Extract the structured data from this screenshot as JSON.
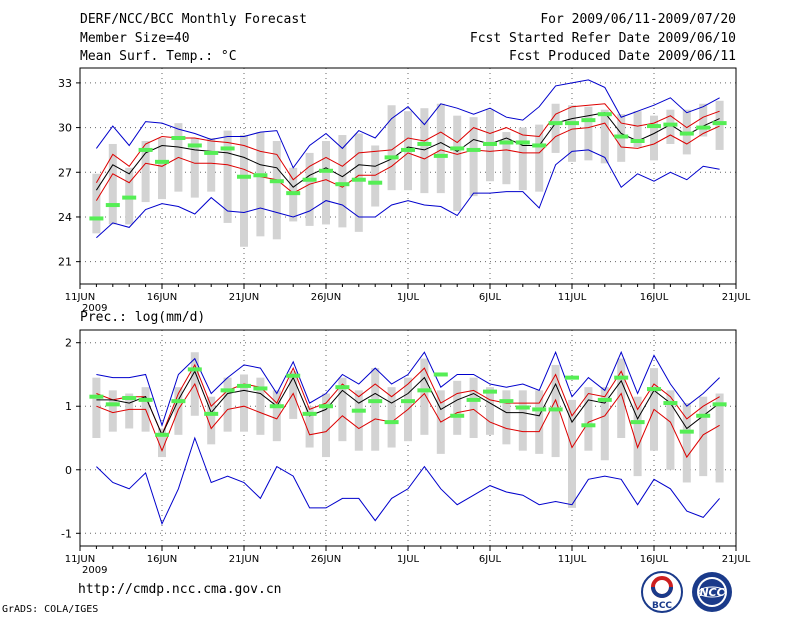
{
  "header": {
    "title": "DERF/NCC/BCC Monthly Forecast",
    "member_size": "Member Size=40",
    "variable": "Mean Surf. Temp.: °C",
    "period": "For 2009/06/11-2009/07/20",
    "fcst_started": "Fcst Started Refer Date 2009/06/10",
    "fcst_produced": "Fcst Produced Date 2009/06/11"
  },
  "footer": {
    "url": "http://cmdp.ncc.cma.gov.cn",
    "grads": "GrADS: COLA/IGES",
    "logo_left_text": "BCC",
    "logo_right_text": "NCC"
  },
  "colors": {
    "ensemble_range": "#0000cc",
    "spread_band": "#dd0000",
    "ensemble_mean": "#000000",
    "iqr_bar": "#d3d3d3",
    "median_marker": "#55ee55",
    "grid": "#666666"
  },
  "chart_data": [
    {
      "type": "line",
      "title": "Mean Surf. Temp.: °C",
      "ylabel": "°C",
      "ylim": [
        19.5,
        34
      ],
      "yticks": [
        21,
        24,
        27,
        30,
        33
      ],
      "ytick_labels": [
        "21",
        "24",
        "27",
        "30",
        "33"
      ],
      "xlim": [
        0,
        40
      ],
      "xticks": [
        0,
        5,
        10,
        15,
        20,
        25,
        30,
        35,
        40
      ],
      "xtick_labels": [
        "11JUN",
        "16JUN",
        "21JUN",
        "26JUN",
        "1JUL",
        "6JUL",
        "11JUL",
        "16JUL",
        "21JUL"
      ],
      "year_label": "2009",
      "grid": true,
      "x": [
        1,
        2,
        3,
        4,
        5,
        6,
        7,
        8,
        9,
        10,
        11,
        12,
        13,
        14,
        15,
        16,
        17,
        18,
        19,
        20,
        21,
        22,
        23,
        24,
        25,
        26,
        27,
        28,
        29,
        30,
        31,
        32,
        33,
        34,
        35,
        36,
        37,
        38,
        39
      ],
      "series": [
        {
          "name": "max",
          "values": [
            28.6,
            30.1,
            28.8,
            30.4,
            30.3,
            29.9,
            29.6,
            29.2,
            29.4,
            29.4,
            29.7,
            29.8,
            27.3,
            28.8,
            29.6,
            28.6,
            29.8,
            29.3,
            30.6,
            31.4,
            30.2,
            31.6,
            31.3,
            30.9,
            31.3,
            30.7,
            30.5,
            31.4,
            32.8,
            33.0,
            33.2,
            32.7,
            30.7,
            31.1,
            31.5,
            32.0,
            31.0,
            31.4,
            32.0
          ]
        },
        {
          "name": "upper",
          "values": [
            26.3,
            28.2,
            27.4,
            28.9,
            29.4,
            29.3,
            29.3,
            29.1,
            29.0,
            28.8,
            28.4,
            28.2,
            26.5,
            27.4,
            28.0,
            27.4,
            28.3,
            28.4,
            28.5,
            29.3,
            29.1,
            29.7,
            29.0,
            30.0,
            29.6,
            30.0,
            29.5,
            29.4,
            30.9,
            31.4,
            31.5,
            31.6,
            30.3,
            30.1,
            30.3,
            30.8,
            30.0,
            30.7,
            31.1
          ]
        },
        {
          "name": "mean",
          "values": [
            25.8,
            27.5,
            26.9,
            28.3,
            28.8,
            28.7,
            28.5,
            28.4,
            28.3,
            28.0,
            27.5,
            27.3,
            26.0,
            26.8,
            27.3,
            26.7,
            27.5,
            27.4,
            27.9,
            28.7,
            28.5,
            29.0,
            28.4,
            29.2,
            28.9,
            29.3,
            28.8,
            28.8,
            30.3,
            30.6,
            30.8,
            31.0,
            29.6,
            29.1,
            29.6,
            30.2,
            29.5,
            30.1,
            30.6
          ]
        },
        {
          "name": "lower",
          "values": [
            25.1,
            26.9,
            26.3,
            27.6,
            27.4,
            28.0,
            27.6,
            27.6,
            27.5,
            27.2,
            26.7,
            26.5,
            25.6,
            26.2,
            26.5,
            26.0,
            26.8,
            26.8,
            27.4,
            28.3,
            27.9,
            28.5,
            28.2,
            28.5,
            28.4,
            28.5,
            28.3,
            28.3,
            29.4,
            29.9,
            30.0,
            30.3,
            28.7,
            28.6,
            28.9,
            29.5,
            28.9,
            29.6,
            30.1
          ]
        },
        {
          "name": "min",
          "values": [
            22.6,
            23.6,
            23.3,
            24.5,
            24.9,
            24.7,
            24.2,
            25.3,
            24.4,
            24.3,
            24.6,
            24.3,
            24.0,
            24.4,
            25.1,
            24.8,
            24.0,
            24.0,
            24.8,
            25.1,
            24.8,
            24.7,
            24.1,
            25.6,
            25.6,
            25.7,
            25.7,
            24.6,
            27.5,
            28.4,
            28.5,
            28.0,
            26.0,
            26.9,
            26.4,
            27.0,
            26.5,
            27.4,
            27.2
          ]
        }
      ],
      "boxes": {
        "low": [
          22.9,
          23.5,
          23.5,
          25.0,
          25.2,
          25.7,
          25.3,
          25.7,
          23.6,
          22.0,
          22.7,
          22.5,
          23.7,
          23.4,
          23.5,
          23.3,
          23.0,
          24.7,
          25.8,
          25.8,
          25.6,
          25.6,
          24.4,
          25.4,
          26.4,
          26.2,
          25.8,
          25.7,
          28.3,
          27.7,
          27.8,
          27.6,
          27.7,
          28.7,
          27.8,
          28.9,
          28.2,
          29.4,
          28.5
        ],
        "high": [
          26.9,
          28.9,
          27.3,
          29.1,
          29.3,
          30.3,
          29.3,
          29.3,
          29.8,
          29.5,
          29.7,
          29.1,
          27.3,
          28.3,
          29.1,
          29.5,
          29.6,
          28.8,
          31.5,
          31.1,
          31.3,
          31.6,
          30.8,
          30.7,
          31.2,
          29.7,
          30.0,
          30.2,
          31.6,
          31.5,
          31.4,
          31.2,
          30.9,
          31.1,
          30.8,
          31.2,
          31.2,
          31.6,
          31.8
        ]
      },
      "markers": [
        23.9,
        24.8,
        25.3,
        28.5,
        27.7,
        29.3,
        28.8,
        28.3,
        28.6,
        26.7,
        26.8,
        26.4,
        25.6,
        26.5,
        27.1,
        26.2,
        26.5,
        26.3,
        28.0,
        28.5,
        28.9,
        28.1,
        28.6,
        28.5,
        28.9,
        29.0,
        29.0,
        28.8,
        30.3,
        30.3,
        30.5,
        30.9,
        29.4,
        29.1,
        30.1,
        30.2,
        29.6,
        30.0,
        30.3
      ]
    },
    {
      "type": "line",
      "title": "Prec.: log(mm/d)",
      "ylabel": "log(mm/d)",
      "ylim": [
        -1.2,
        2.2
      ],
      "yticks": [
        -1,
        0,
        1,
        2
      ],
      "ytick_labels": [
        "-1",
        "0",
        "1",
        "2"
      ],
      "xlim": [
        0,
        40
      ],
      "xticks": [
        0,
        5,
        10,
        15,
        20,
        25,
        30,
        35,
        40
      ],
      "xtick_labels": [
        "11JUN",
        "16JUN",
        "21JUN",
        "26JUN",
        "1JUL",
        "6JUL",
        "11JUL",
        "16JUL",
        "21JUL"
      ],
      "year_label": "2009",
      "grid": true,
      "x": [
        1,
        2,
        3,
        4,
        5,
        6,
        7,
        8,
        9,
        10,
        11,
        12,
        13,
        14,
        15,
        16,
        17,
        18,
        19,
        20,
        21,
        22,
        23,
        24,
        25,
        26,
        27,
        28,
        29,
        30,
        31,
        32,
        33,
        34,
        35,
        36,
        37,
        38,
        39
      ],
      "series": [
        {
          "name": "max",
          "values": [
            1.5,
            1.45,
            1.45,
            1.5,
            0.7,
            1.5,
            1.75,
            1.2,
            1.45,
            1.65,
            1.6,
            1.2,
            1.7,
            1.05,
            1.2,
            1.5,
            1.35,
            1.6,
            1.35,
            1.5,
            1.85,
            1.3,
            1.5,
            1.5,
            1.35,
            1.3,
            1.35,
            1.25,
            1.85,
            1.15,
            1.45,
            1.25,
            1.85,
            1.2,
            1.8,
            1.35,
            1.0,
            1.2,
            1.45
          ]
        },
        {
          "name": "upper",
          "values": [
            1.2,
            1.1,
            1.15,
            1.15,
            0.55,
            1.2,
            1.65,
            1.0,
            1.25,
            1.35,
            1.3,
            1.05,
            1.6,
            0.95,
            1.05,
            1.35,
            1.15,
            1.35,
            1.15,
            1.35,
            1.6,
            1.05,
            1.2,
            1.25,
            1.1,
            1.05,
            1.05,
            1.05,
            1.5,
            0.85,
            1.2,
            1.15,
            1.55,
            0.95,
            1.35,
            1.15,
            0.8,
            1.0,
            1.15
          ]
        },
        {
          "name": "mean",
          "values": [
            1.1,
            1.1,
            1.05,
            1.15,
            0.55,
            1.1,
            1.55,
            0.9,
            1.2,
            1.25,
            1.2,
            1.0,
            1.45,
            0.85,
            0.95,
            1.25,
            1.05,
            1.2,
            1.05,
            1.2,
            1.45,
            0.95,
            1.1,
            1.2,
            1.05,
            0.9,
            0.9,
            0.85,
            1.35,
            0.75,
            1.1,
            1.05,
            1.4,
            0.8,
            1.25,
            1.05,
            0.65,
            0.85,
            1.05
          ]
        },
        {
          "name": "lower",
          "values": [
            1.0,
            0.9,
            0.95,
            0.95,
            0.3,
            0.95,
            1.35,
            0.65,
            0.95,
            1.0,
            0.9,
            0.8,
            1.2,
            0.55,
            0.6,
            0.85,
            0.65,
            0.8,
            0.75,
            0.95,
            1.2,
            0.75,
            0.9,
            0.95,
            0.75,
            0.65,
            0.6,
            0.6,
            1.1,
            0.35,
            0.75,
            0.85,
            1.2,
            0.35,
            0.95,
            0.75,
            0.2,
            0.55,
            0.7
          ]
        },
        {
          "name": "min",
          "values": [
            0.05,
            -0.2,
            -0.3,
            -0.05,
            -0.85,
            -0.3,
            0.5,
            -0.2,
            -0.1,
            -0.2,
            -0.45,
            0.05,
            -0.1,
            -0.6,
            -0.6,
            -0.45,
            -0.45,
            -0.8,
            -0.45,
            -0.3,
            0.05,
            -0.3,
            -0.55,
            -0.4,
            -0.25,
            -0.35,
            -0.4,
            -0.55,
            -0.5,
            -0.55,
            -0.15,
            -0.1,
            -0.15,
            -0.55,
            -0.15,
            -0.3,
            -0.65,
            -0.75,
            -0.45
          ]
        }
      ],
      "boxes": {
        "low": [
          0.5,
          0.6,
          0.65,
          0.6,
          0.2,
          0.55,
          0.85,
          0.4,
          0.6,
          0.6,
          0.55,
          0.45,
          0.8,
          0.35,
          0.2,
          0.45,
          0.3,
          0.3,
          0.35,
          0.45,
          0.55,
          0.25,
          0.55,
          0.5,
          0.55,
          0.4,
          0.3,
          0.25,
          0.2,
          -0.6,
          0.3,
          0.15,
          0.5,
          -0.1,
          0.3,
          0.0,
          -0.2,
          -0.1,
          -0.2
        ],
        "high": [
          1.45,
          1.25,
          1.2,
          1.3,
          0.65,
          1.3,
          1.85,
          1.15,
          1.45,
          1.5,
          1.45,
          1.25,
          1.55,
          1.0,
          1.2,
          1.45,
          1.25,
          1.6,
          1.3,
          1.45,
          1.75,
          1.25,
          1.4,
          1.45,
          1.3,
          1.25,
          1.25,
          1.25,
          1.65,
          1.1,
          1.3,
          1.3,
          1.75,
          1.15,
          1.6,
          1.25,
          1.05,
          1.15,
          1.2
        ]
      },
      "markers": [
        1.15,
        1.03,
        1.13,
        1.1,
        0.55,
        1.08,
        1.58,
        0.88,
        1.25,
        1.32,
        1.28,
        1.0,
        1.48,
        0.88,
        1.0,
        1.3,
        0.93,
        1.08,
        0.75,
        1.08,
        1.25,
        1.5,
        0.85,
        1.1,
        1.23,
        1.08,
        0.98,
        0.95,
        0.95,
        1.45,
        0.7,
        1.1,
        1.45,
        0.75,
        1.27,
        1.05,
        0.6,
        0.85,
        1.03
      ]
    }
  ]
}
